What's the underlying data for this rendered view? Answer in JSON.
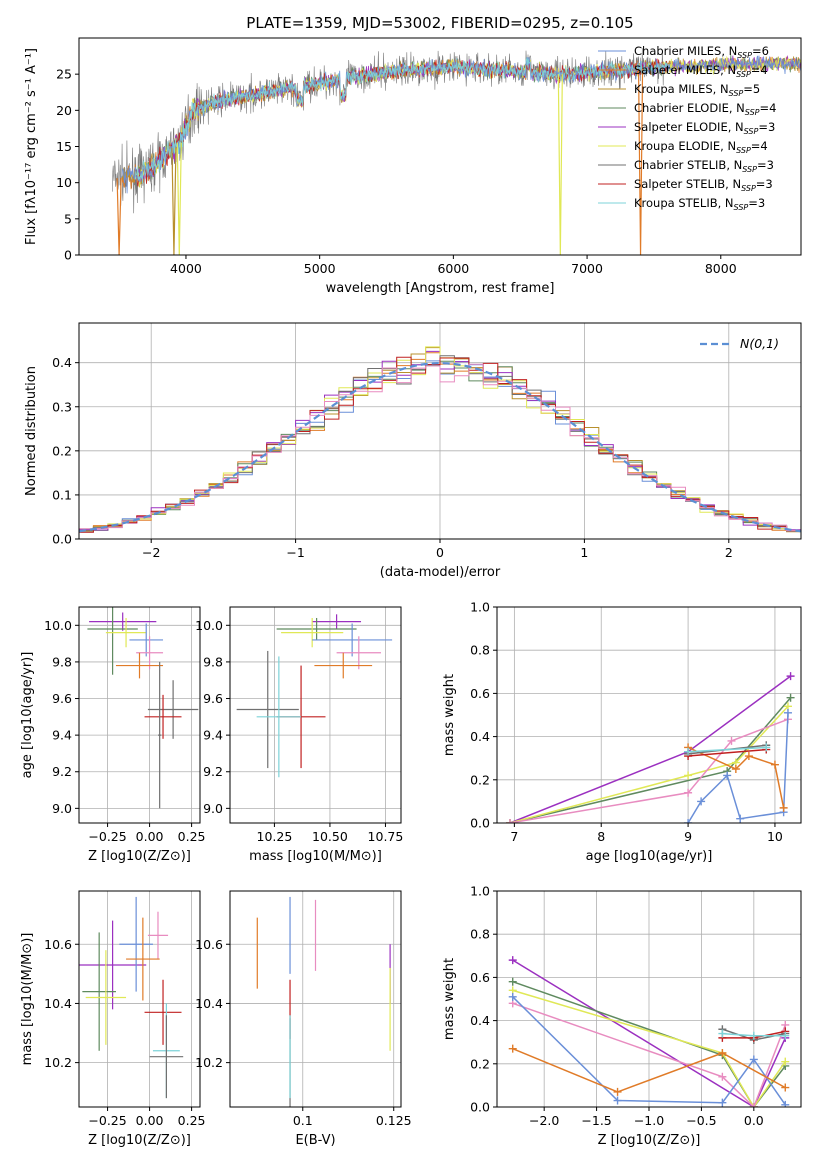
{
  "figure": {
    "title": "PLATE=1359, MJD=53002, FIBERID=0295, z=0.105"
  },
  "colors": {
    "chabrier_miles": "#6a8fd8",
    "salpeter_miles": "#e07b28",
    "kroupa_miles": "#b8902c",
    "chabrier_elodie": "#5f8a5f",
    "salpeter_elodie": "#9b30c0",
    "kroupa_elodie": "#e0e856",
    "chabrier_stelib": "#707070",
    "salpeter_stelib": "#c02020",
    "kroupa_stelib": "#7dd3d8",
    "normal": "#5b8fd4",
    "light_pink": "#e88cc0"
  },
  "legend": [
    {
      "key": "chabrier_miles",
      "prefix": "Chabrier MILES, N",
      "sub": "SSP",
      "suffix": "=6"
    },
    {
      "key": "salpeter_miles",
      "prefix": "Salpeter MILES, N",
      "sub": "SSP",
      "suffix": "=4"
    },
    {
      "key": "kroupa_miles",
      "prefix": "Kroupa MILES, N",
      "sub": "SSP",
      "suffix": "=5"
    },
    {
      "key": "chabrier_elodie",
      "prefix": "Chabrier ELODIE, N",
      "sub": "SSP",
      "suffix": "=4"
    },
    {
      "key": "salpeter_elodie",
      "prefix": "Salpeter ELODIE, N",
      "sub": "SSP",
      "suffix": "=3"
    },
    {
      "key": "kroupa_elodie",
      "prefix": "Kroupa ELODIE, N",
      "sub": "SSP",
      "suffix": "=4"
    },
    {
      "key": "chabrier_stelib",
      "prefix": "Chabrier STELIB, N",
      "sub": "SSP",
      "suffix": "=3"
    },
    {
      "key": "salpeter_stelib",
      "prefix": "Salpeter STELIB, N",
      "sub": "SSP",
      "suffix": "=3"
    },
    {
      "key": "kroupa_stelib",
      "prefix": "Kroupa STELIB, N",
      "sub": "SSP",
      "suffix": "=3"
    }
  ],
  "chart_data": [
    {
      "id": "spectrum",
      "type": "line",
      "xlabel": "wavelength [Angstrom, rest frame]",
      "ylabel": "Flux [fλ10⁻¹⁷ erg cm⁻² s⁻¹ A⁻¹]",
      "xlim": [
        3200,
        8600
      ],
      "ylim": [
        0,
        30
      ],
      "xticks": [
        4000,
        5000,
        6000,
        7000,
        8000
      ],
      "yticks": [
        0,
        5,
        10,
        15,
        20,
        25
      ],
      "grid": false,
      "legend_position": "right",
      "continuum": [
        [
          3450,
          10.5
        ],
        [
          3650,
          11
        ],
        [
          3800,
          13
        ],
        [
          3950,
          15.5
        ],
        [
          4050,
          20
        ],
        [
          4300,
          21.5
        ],
        [
          4600,
          22.5
        ],
        [
          4900,
          23.5
        ],
        [
          5200,
          24.5
        ],
        [
          5600,
          25.5
        ],
        [
          6000,
          26
        ],
        [
          6400,
          25.5
        ],
        [
          6800,
          25
        ],
        [
          7200,
          25.5
        ],
        [
          7600,
          26
        ],
        [
          8000,
          26.3
        ],
        [
          8400,
          26.5
        ]
      ],
      "data_gaps": [
        {
          "key": "kroupa_miles",
          "x": 3910
        },
        {
          "key": "kroupa_elodie",
          "x": 3950
        },
        {
          "key": "salpeter_miles",
          "x": 3500
        },
        {
          "key": "kroupa_elodie",
          "x": 6800
        },
        {
          "key": "salpeter_miles",
          "x": 7400
        }
      ]
    },
    {
      "id": "residuals",
      "type": "step",
      "xlabel": "(data-model)/error",
      "ylabel": "Normed distribution",
      "xlim": [
        -2.5,
        2.5
      ],
      "ylim": [
        0,
        0.49
      ],
      "xticks": [
        -2,
        -1,
        0,
        1,
        2
      ],
      "yticks": [
        0.0,
        0.1,
        0.2,
        0.3,
        0.4
      ],
      "grid": true,
      "legend_position": "top-right",
      "normal_label": "N(0,1)",
      "bin_width": 0.1
    },
    {
      "id": "age_vs_Z",
      "type": "errorbar",
      "xlabel": "Z [log10(Z/Z⊙)]",
      "ylabel": "age  [log10(age/yr)]",
      "xlim": [
        -0.42,
        0.3
      ],
      "ylim": [
        8.92,
        10.1
      ],
      "xticks": [
        -0.25,
        0.0,
        0.25
      ],
      "yticks": [
        9.0,
        9.2,
        9.4,
        9.6,
        9.8,
        10.0
      ],
      "grid": true,
      "points": [
        {
          "key": "salpeter_elodie",
          "x": -0.16,
          "y": 10.02,
          "xerr": 0.2,
          "yerr": 0.05
        },
        {
          "key": "chabrier_elodie",
          "x": -0.22,
          "y": 9.98,
          "xerr": 0.15,
          "yerr": 0.25
        },
        {
          "key": "kroupa_elodie",
          "x": -0.14,
          "y": 9.96,
          "xerr": 0.12,
          "yerr": 0.08
        },
        {
          "key": "chabrier_miles",
          "x": -0.02,
          "y": 9.92,
          "xerr": 0.1,
          "yerr": 0.09
        },
        {
          "key": "light_pink",
          "x": 0.0,
          "y": 9.85,
          "xerr": 0.08,
          "yerr": 0.09
        },
        {
          "key": "salpeter_miles",
          "x": -0.06,
          "y": 9.78,
          "xerr": 0.14,
          "yerr": 0.07
        },
        {
          "key": "chabrier_stelib",
          "x": 0.14,
          "y": 9.54,
          "xerr": 0.15,
          "yerr": 0.16
        },
        {
          "key": "salpeter_stelib",
          "x": 0.08,
          "y": 9.5,
          "xerr": 0.11,
          "yerr": 0.12
        },
        {
          "key": "chabrier_stelib",
          "x": 0.06,
          "y": 9.4,
          "xerr": 0.01,
          "yerr": 0.4
        }
      ]
    },
    {
      "id": "age_vs_mass",
      "type": "errorbar",
      "xlabel": "mass [log10(M/M⊙)]",
      "ylabel": "",
      "xlim": [
        10.05,
        10.82
      ],
      "ylim": [
        8.92,
        10.1
      ],
      "xticks": [
        10.25,
        10.5,
        10.75
      ],
      "yticks": [
        9.0,
        9.2,
        9.4,
        9.6,
        9.8,
        10.0
      ],
      "grid": true,
      "points": [
        {
          "key": "salpeter_elodie",
          "x": 10.53,
          "y": 10.02,
          "xerr": 0.11,
          "yerr": 0.04
        },
        {
          "key": "chabrier_elodie",
          "x": 10.44,
          "y": 9.98,
          "xerr": 0.18,
          "yerr": 0.06
        },
        {
          "key": "kroupa_elodie",
          "x": 10.42,
          "y": 9.96,
          "xerr": 0.14,
          "yerr": 0.08
        },
        {
          "key": "chabrier_miles",
          "x": 10.6,
          "y": 9.92,
          "xerr": 0.18,
          "yerr": 0.09
        },
        {
          "key": "light_pink",
          "x": 10.63,
          "y": 9.85,
          "xerr": 0.1,
          "yerr": 0.09
        },
        {
          "key": "salpeter_miles",
          "x": 10.56,
          "y": 9.78,
          "xerr": 0.13,
          "yerr": 0.07
        },
        {
          "key": "chabrier_stelib",
          "x": 10.22,
          "y": 9.54,
          "xerr": 0.14,
          "yerr": 0.32
        },
        {
          "key": "salpeter_stelib",
          "x": 10.37,
          "y": 9.5,
          "xerr": 0.11,
          "yerr": 0.28
        },
        {
          "key": "kroupa_stelib",
          "x": 10.27,
          "y": 9.5,
          "xerr": 0.1,
          "yerr": 0.33
        }
      ]
    },
    {
      "id": "massweight_vs_age",
      "type": "line",
      "xlabel": "age  [log10(age/yr)]",
      "ylabel": "mass weight",
      "xlim": [
        6.8,
        10.3
      ],
      "ylim": [
        0,
        1.0
      ],
      "xticks": [
        7,
        8,
        9,
        10
      ],
      "yticks": [
        0.0,
        0.2,
        0.4,
        0.6,
        0.8,
        1.0
      ],
      "grid": true,
      "series": [
        {
          "key": "salpeter_elodie",
          "points": [
            [
              6.95,
              0.0
            ],
            [
              9.0,
              0.33
            ],
            [
              10.18,
              0.68
            ]
          ]
        },
        {
          "key": "chabrier_elodie",
          "points": [
            [
              6.95,
              0.0
            ],
            [
              9.45,
              0.24
            ],
            [
              10.18,
              0.58
            ]
          ]
        },
        {
          "key": "kroupa_elodie",
          "points": [
            [
              6.95,
              0.0
            ],
            [
              9.0,
              0.22
            ],
            [
              9.55,
              0.28
            ],
            [
              10.15,
              0.54
            ]
          ]
        },
        {
          "key": "light_pink",
          "points": [
            [
              6.95,
              0.0
            ],
            [
              9.0,
              0.14
            ],
            [
              9.5,
              0.38
            ],
            [
              10.15,
              0.48
            ]
          ]
        },
        {
          "key": "chabrier_miles",
          "points": [
            [
              9.0,
              0.0
            ],
            [
              9.15,
              0.1
            ],
            [
              9.45,
              0.22
            ],
            [
              9.6,
              0.02
            ],
            [
              10.1,
              0.05
            ],
            [
              10.15,
              0.51
            ]
          ]
        },
        {
          "key": "salpeter_miles",
          "points": [
            [
              9.0,
              0.35
            ],
            [
              9.55,
              0.25
            ],
            [
              9.7,
              0.31
            ],
            [
              10.0,
              0.27
            ],
            [
              10.1,
              0.07
            ]
          ]
        },
        {
          "key": "chabrier_stelib",
          "points": [
            [
              9.0,
              0.32
            ],
            [
              9.9,
              0.36
            ]
          ]
        },
        {
          "key": "salpeter_stelib",
          "points": [
            [
              9.0,
              0.31
            ],
            [
              9.9,
              0.34
            ]
          ]
        },
        {
          "key": "kroupa_stelib",
          "points": [
            [
              9.0,
              0.33
            ],
            [
              9.9,
              0.35
            ]
          ]
        }
      ]
    },
    {
      "id": "mass_vs_Z",
      "type": "errorbar",
      "xlabel": "Z [log10(Z/Z⊙)]",
      "ylabel": "mass [log10(M/M⊙)]",
      "xlim": [
        -0.42,
        0.3
      ],
      "ylim": [
        10.05,
        10.78
      ],
      "xticks": [
        -0.25,
        0.0,
        0.25
      ],
      "yticks": [
        10.2,
        10.4,
        10.6
      ],
      "grid": true,
      "points": [
        {
          "key": "salpeter_elodie",
          "x": -0.22,
          "y": 10.53,
          "xerr": 0.2,
          "yerr": 0.15
        },
        {
          "key": "chabrier_miles",
          "x": -0.08,
          "y": 10.6,
          "xerr": 0.1,
          "yerr": 0.16
        },
        {
          "key": "light_pink",
          "x": 0.05,
          "y": 10.63,
          "xerr": 0.06,
          "yerr": 0.08
        },
        {
          "key": "salpeter_miles",
          "x": -0.04,
          "y": 10.55,
          "xerr": 0.1,
          "yerr": 0.14
        },
        {
          "key": "chabrier_elodie",
          "x": -0.3,
          "y": 10.44,
          "xerr": 0.1,
          "yerr": 0.2
        },
        {
          "key": "kroupa_elodie",
          "x": -0.26,
          "y": 10.42,
          "xerr": 0.12,
          "yerr": 0.16
        },
        {
          "key": "salpeter_stelib",
          "x": 0.08,
          "y": 10.37,
          "xerr": 0.11,
          "yerr": 0.11
        },
        {
          "key": "kroupa_stelib",
          "x": 0.1,
          "y": 10.24,
          "xerr": 0.08,
          "yerr": 0.16
        },
        {
          "key": "chabrier_stelib",
          "x": 0.1,
          "y": 10.22,
          "xerr": 0.1,
          "yerr": 0.14
        }
      ]
    },
    {
      "id": "mass_vs_ebv",
      "type": "errorbar",
      "xlabel": "E(B-V)",
      "ylabel": "",
      "xlim": [
        0.08,
        0.127
      ],
      "ylim": [
        10.05,
        10.78
      ],
      "xticks": [
        0.1,
        0.125
      ],
      "yticks": [
        10.2,
        10.4,
        10.6
      ],
      "grid": true,
      "points": [
        {
          "key": "salpeter_miles",
          "x": 0.0875,
          "y": 10.57,
          "xerr": 0,
          "yerr": 0.12
        },
        {
          "key": "chabrier_miles",
          "x": 0.0965,
          "y": 10.63,
          "xerr": 0,
          "yerr": 0.13
        },
        {
          "key": "light_pink",
          "x": 0.1035,
          "y": 10.63,
          "xerr": 0,
          "yerr": 0.12
        },
        {
          "key": "salpeter_stelib",
          "x": 0.0965,
          "y": 10.38,
          "xerr": 0,
          "yerr": 0.1
        },
        {
          "key": "chabrier_stelib",
          "x": 0.0965,
          "y": 10.2,
          "xerr": 0,
          "yerr": 0.15
        },
        {
          "key": "kroupa_stelib",
          "x": 0.0965,
          "y": 10.22,
          "xerr": 0,
          "yerr": 0.14
        },
        {
          "key": "salpeter_elodie",
          "x": 0.124,
          "y": 10.5,
          "xerr": 0,
          "yerr": 0.1
        },
        {
          "key": "kroupa_elodie",
          "x": 0.124,
          "y": 10.38,
          "xerr": 0,
          "yerr": 0.14
        }
      ]
    },
    {
      "id": "massweight_vs_Z",
      "type": "line",
      "xlabel": "Z [log10(Z/Z⊙)]",
      "ylabel": "mass weight",
      "xlim": [
        -2.45,
        0.45
      ],
      "ylim": [
        0,
        1.0
      ],
      "xticks": [
        -2.0,
        -1.5,
        -1.0,
        -0.5,
        0.0
      ],
      "yticks": [
        0.0,
        0.2,
        0.4,
        0.6,
        0.8,
        1.0
      ],
      "grid": true,
      "series": [
        {
          "key": "salpeter_elodie",
          "points": [
            [
              -2.3,
              0.68
            ],
            [
              0.0,
              0.0
            ],
            [
              0.3,
              0.32
            ]
          ]
        },
        {
          "key": "chabrier_elodie",
          "points": [
            [
              -2.3,
              0.58
            ],
            [
              -0.3,
              0.24
            ],
            [
              0.0,
              0.0
            ],
            [
              0.3,
              0.19
            ]
          ]
        },
        {
          "key": "kroupa_elodie",
          "points": [
            [
              -2.3,
              0.54
            ],
            [
              -0.3,
              0.25
            ],
            [
              0.0,
              0.0
            ],
            [
              0.3,
              0.21
            ]
          ]
        },
        {
          "key": "light_pink",
          "points": [
            [
              -2.3,
              0.48
            ],
            [
              -0.3,
              0.14
            ],
            [
              0.0,
              0.0
            ],
            [
              0.3,
              0.38
            ]
          ]
        },
        {
          "key": "chabrier_miles",
          "points": [
            [
              -2.3,
              0.51
            ],
            [
              -1.3,
              0.03
            ],
            [
              -0.3,
              0.02
            ],
            [
              0.0,
              0.22
            ],
            [
              0.3,
              0.01
            ]
          ]
        },
        {
          "key": "salpeter_miles",
          "points": [
            [
              -2.3,
              0.27
            ],
            [
              -1.3,
              0.07
            ],
            [
              -0.3,
              0.25
            ],
            [
              0.3,
              0.09
            ]
          ]
        },
        {
          "key": "chabrier_stelib",
          "points": [
            [
              -0.3,
              0.36
            ],
            [
              0.0,
              0.31
            ],
            [
              0.3,
              0.34
            ]
          ]
        },
        {
          "key": "salpeter_stelib",
          "points": [
            [
              -0.3,
              0.32
            ],
            [
              0.0,
              0.32
            ],
            [
              0.3,
              0.35
            ]
          ]
        },
        {
          "key": "kroupa_stelib",
          "points": [
            [
              -0.3,
              0.34
            ],
            [
              0.0,
              0.33
            ],
            [
              0.3,
              0.33
            ]
          ]
        }
      ]
    }
  ]
}
